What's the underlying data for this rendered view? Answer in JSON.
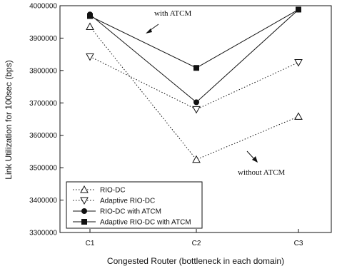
{
  "chart_data": {
    "type": "line",
    "categories": [
      "C1",
      "C2",
      "C3"
    ],
    "xlabel": "Congested Router (bottleneck in each domain)",
    "ylabel": "Link Utilization for 100sec (bps)",
    "ylim": [
      3300000,
      4000000
    ],
    "yticks": [
      3300000,
      3400000,
      3500000,
      3600000,
      3700000,
      3800000,
      3900000,
      4000000
    ],
    "series": [
      {
        "name": "RIO-DC",
        "marker": "triangle-up-open",
        "line": "dotted",
        "values": [
          3935000,
          3525000,
          3658000
        ]
      },
      {
        "name": "Adaptive RIO-DC",
        "marker": "triangle-down-open",
        "line": "dotted",
        "values": [
          3843000,
          3680000,
          3825000
        ]
      },
      {
        "name": "RIO-DC with ATCM",
        "marker": "circle-filled",
        "line": "solid",
        "values": [
          3973000,
          3702000,
          3988000
        ]
      },
      {
        "name": "Adaptive RIO-DC with ATCM",
        "marker": "square-filled",
        "line": "solid",
        "values": [
          3968000,
          3808000,
          3988000
        ]
      }
    ],
    "annotations": [
      {
        "text": "with ATCM",
        "arrow": "up-left"
      },
      {
        "text": "without ATCM",
        "arrow": "down-right"
      }
    ],
    "legend_position": "bottom-left",
    "grid": false
  }
}
